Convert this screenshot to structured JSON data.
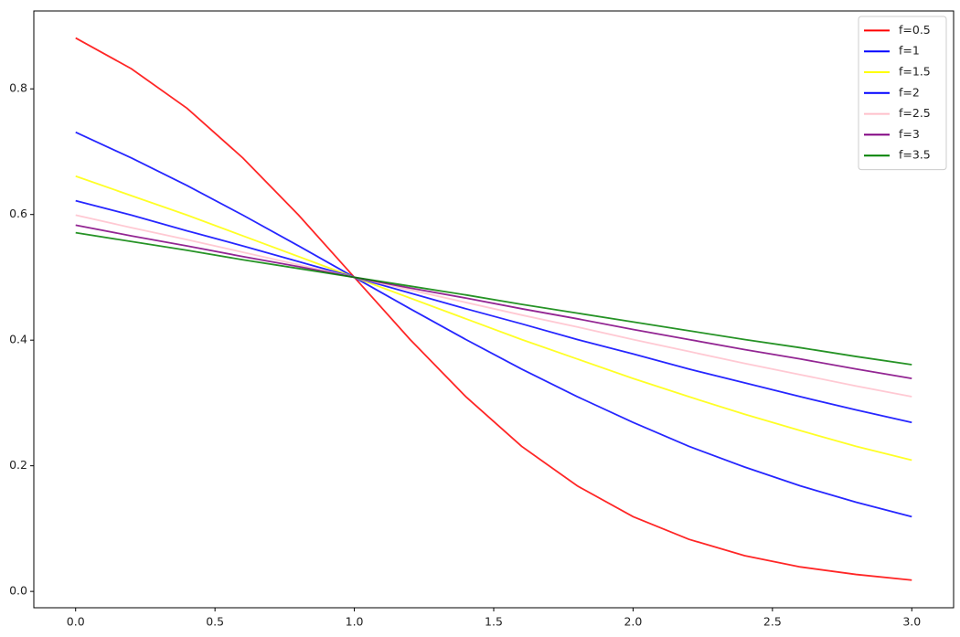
{
  "chart_data": {
    "type": "line",
    "x": [
      0,
      0.2,
      0.4,
      0.6,
      0.8,
      1.0,
      1.2,
      1.4,
      1.6,
      1.8,
      2.0,
      2.2,
      2.4,
      2.6,
      2.8,
      3.0
    ],
    "series": [
      {
        "name": "f=0.5",
        "color": "#ff0000",
        "values": [
          0.881,
          0.832,
          0.769,
          0.69,
          0.599,
          0.5,
          0.401,
          0.31,
          0.231,
          0.168,
          0.119,
          0.083,
          0.057,
          0.039,
          0.027,
          0.018
        ]
      },
      {
        "name": "f=1",
        "color": "#0000ff",
        "values": [
          0.731,
          0.69,
          0.646,
          0.599,
          0.55,
          0.5,
          0.45,
          0.401,
          0.354,
          0.31,
          0.269,
          0.231,
          0.198,
          0.168,
          0.142,
          0.119
        ]
      },
      {
        "name": "f=1.5",
        "color": "#ffff00",
        "values": [
          0.661,
          0.63,
          0.599,
          0.566,
          0.533,
          0.5,
          0.467,
          0.434,
          0.401,
          0.37,
          0.339,
          0.31,
          0.282,
          0.256,
          0.231,
          0.209
        ]
      },
      {
        "name": "f=2",
        "color": "#0000ff",
        "values": [
          0.622,
          0.599,
          0.574,
          0.55,
          0.525,
          0.5,
          0.475,
          0.45,
          0.426,
          0.401,
          0.378,
          0.354,
          0.332,
          0.31,
          0.289,
          0.269
        ]
      },
      {
        "name": "f=2.5",
        "color": "#ffc0cb",
        "values": [
          0.599,
          0.579,
          0.56,
          0.54,
          0.52,
          0.5,
          0.48,
          0.46,
          0.44,
          0.421,
          0.401,
          0.382,
          0.363,
          0.345,
          0.327,
          0.31
        ]
      },
      {
        "name": "f=3",
        "color": "#800080",
        "values": [
          0.583,
          0.566,
          0.55,
          0.533,
          0.517,
          0.5,
          0.483,
          0.467,
          0.45,
          0.434,
          0.417,
          0.401,
          0.385,
          0.37,
          0.354,
          0.339
        ]
      },
      {
        "name": "f=3.5",
        "color": "#008000",
        "values": [
          0.571,
          0.557,
          0.543,
          0.528,
          0.514,
          0.5,
          0.486,
          0.472,
          0.457,
          0.443,
          0.429,
          0.415,
          0.401,
          0.388,
          0.374,
          0.361
        ]
      }
    ],
    "xlim": [
      -0.15,
      3.15
    ],
    "ylim": [
      -0.026,
      0.924
    ],
    "xticks": [
      {
        "value": 0,
        "label": "0.0"
      },
      0.5,
      {
        "value": 1,
        "label": "1.0"
      },
      1.5,
      {
        "value": 2,
        "label": "2.0"
      },
      2.5,
      {
        "value": 3,
        "label": "3.0"
      }
    ],
    "yticks": [
      {
        "value": 0,
        "label": "0.0"
      },
      0.2,
      0.4,
      0.6,
      0.8
    ],
    "grid": false,
    "legend": "upper right"
  }
}
